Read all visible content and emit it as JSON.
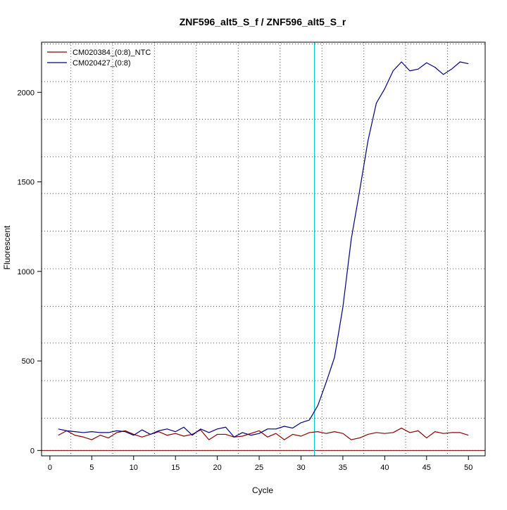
{
  "chart_data": {
    "type": "line",
    "title": "ZNF596_alt5_S_f / ZNF596_alt5_S_r",
    "xlabel": "Cycle",
    "ylabel": "Fluorescent",
    "xlim": [
      -1.0,
      52.0
    ],
    "ylim": [
      -30,
      2280
    ],
    "xticks": [
      0,
      5,
      10,
      15,
      20,
      25,
      30,
      35,
      40,
      45,
      50
    ],
    "yticks": [
      0,
      500,
      1000,
      1500,
      2000
    ],
    "grid": true,
    "grid_x_lines": [
      -1.5,
      2.5,
      7.5,
      12.5,
      17.5,
      22.5,
      27.5,
      32.5,
      37.5,
      42.5,
      47.5,
      52.5
    ],
    "grid_y_lines": [
      0,
      180,
      390,
      600,
      805,
      1015,
      1225,
      1435,
      1640,
      1850,
      2060,
      2270
    ],
    "legend_position": "top-left",
    "threshold_cycle": 31.6,
    "threshold_color": "#00CCCC",
    "baseline_y": 0,
    "baseline_color": "#8B0000",
    "series": [
      {
        "name": "CM020384_(0:8)_NTC",
        "color": "#8B0000",
        "x": [
          1,
          2,
          3,
          4,
          5,
          6,
          7,
          8,
          9,
          10,
          11,
          12,
          13,
          14,
          15,
          16,
          17,
          18,
          19,
          20,
          21,
          22,
          23,
          24,
          25,
          26,
          27,
          28,
          29,
          30,
          31,
          32,
          33,
          34,
          35,
          36,
          37,
          38,
          39,
          40,
          41,
          42,
          43,
          44,
          45,
          46,
          47,
          48,
          49,
          50
        ],
        "values": [
          85,
          110,
          85,
          75,
          60,
          85,
          70,
          100,
          110,
          90,
          75,
          90,
          105,
          85,
          95,
          80,
          90,
          115,
          60,
          90,
          90,
          75,
          80,
          95,
          110,
          75,
          95,
          60,
          90,
          80,
          100,
          105,
          95,
          105,
          95,
          60,
          70,
          90,
          100,
          95,
          100,
          125,
          100,
          110,
          70,
          105,
          95,
          100,
          100,
          85
        ]
      },
      {
        "name": "CM020427_(0:8)",
        "color": "#000080",
        "x": [
          1,
          2,
          3,
          4,
          5,
          6,
          7,
          8,
          9,
          10,
          11,
          12,
          13,
          14,
          15,
          16,
          17,
          18,
          19,
          20,
          21,
          22,
          23,
          24,
          25,
          26,
          27,
          28,
          29,
          30,
          31,
          32,
          33,
          34,
          35,
          36,
          37,
          38,
          39,
          40,
          41,
          42,
          43,
          44,
          45,
          46,
          47,
          48,
          49,
          50
        ],
        "values": [
          120,
          110,
          105,
          100,
          105,
          100,
          100,
          110,
          105,
          85,
          115,
          90,
          110,
          120,
          105,
          130,
          85,
          120,
          100,
          120,
          130,
          75,
          100,
          85,
          95,
          120,
          120,
          135,
          125,
          155,
          170,
          250,
          380,
          520,
          800,
          1180,
          1450,
          1730,
          1940,
          2020,
          2120,
          2170,
          2120,
          2130,
          2165,
          2140,
          2100,
          2130,
          2170,
          2160
        ]
      }
    ]
  }
}
